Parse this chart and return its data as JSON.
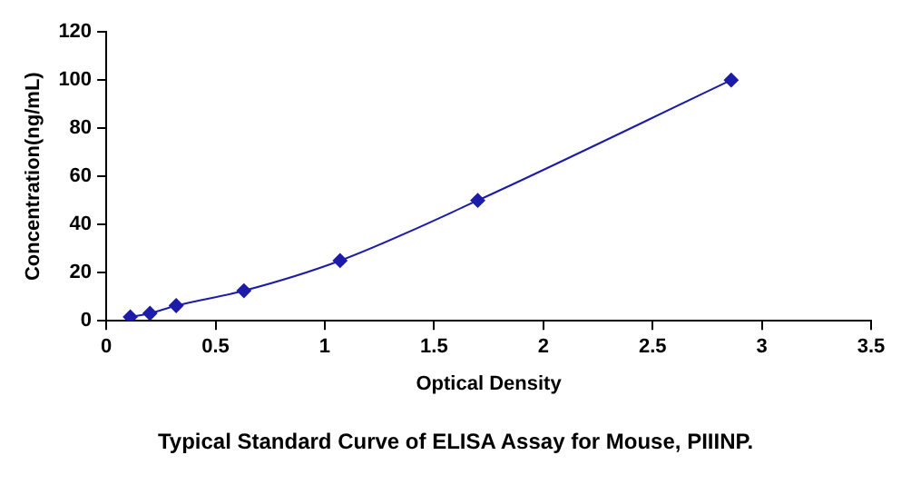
{
  "chart_data": {
    "type": "line",
    "xlabel": "Optical Density",
    "ylabel": "Concentration(ng/mL)",
    "annotations": [
      "Typical Standard Curve of ELISA Assay for Mouse, PIIINP."
    ],
    "x": [
      0.11,
      0.2,
      0.32,
      0.63,
      1.07,
      1.7,
      2.86
    ],
    "series": [
      {
        "color": "#1c1ca8",
        "values": [
          1.6,
          3.1,
          6.3,
          12.5,
          25,
          50,
          100
        ]
      }
    ],
    "xlim": [
      0,
      3.5
    ],
    "xticks": [
      0,
      0.5,
      1,
      1.5,
      2,
      2.5,
      3,
      3.5
    ],
    "ylim": [
      0,
      120
    ],
    "yticks": [
      0,
      20,
      40,
      60,
      80,
      100,
      120
    ],
    "grid": false,
    "legend": false,
    "marker": "diamond",
    "line_style": "solid"
  }
}
